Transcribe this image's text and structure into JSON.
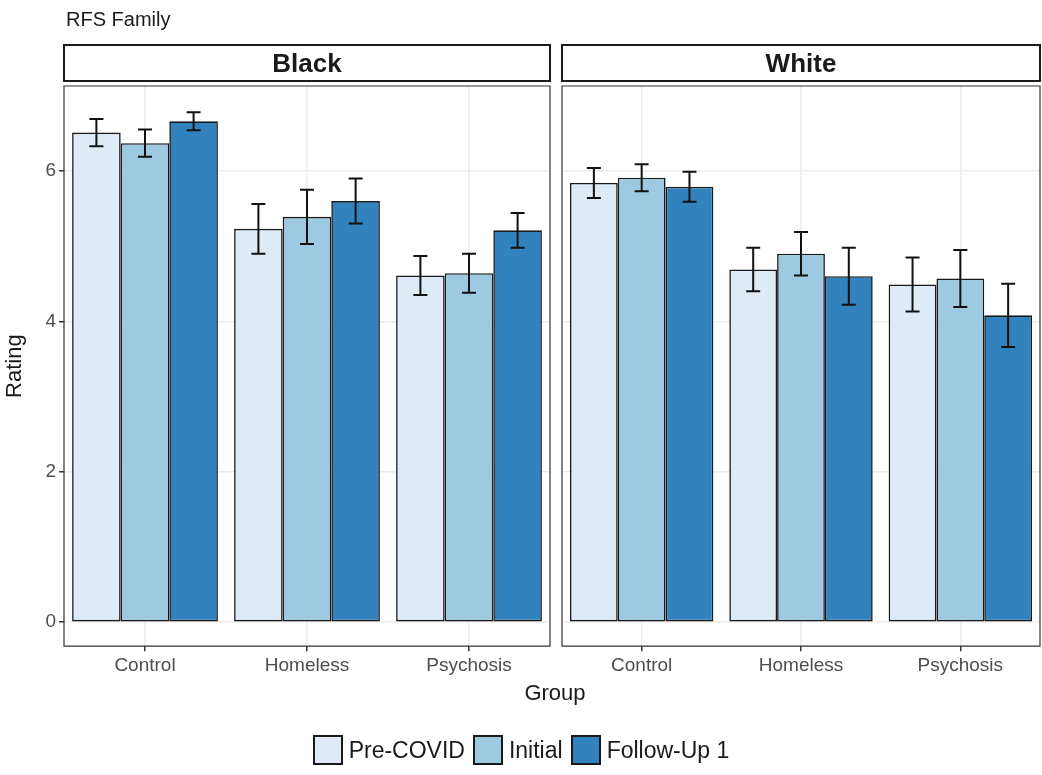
{
  "chart_data": [
    {
      "type": "bar",
      "title": "Black",
      "annotations": [
        "RFS Family"
      ],
      "xlabel": "Group",
      "ylabel": "Rating",
      "categories": [
        "Control",
        "Homeless",
        "Psychosis"
      ],
      "ylim": [
        -0.32,
        7.13
      ],
      "yticks": [
        0,
        2,
        4,
        6
      ],
      "grid": true,
      "legend": "bottom",
      "series": [
        {
          "name": "Pre-COVID",
          "color": "#deebf7",
          "values": [
            6.51,
            5.23,
            4.61
          ],
          "errors": [
            0.18,
            0.33,
            0.26
          ]
        },
        {
          "name": "Initial",
          "color": "#9ecae1",
          "values": [
            6.37,
            5.39,
            4.64
          ],
          "errors": [
            0.18,
            0.36,
            0.26
          ]
        },
        {
          "name": "Follow-Up 1",
          "color": "#3182bd",
          "values": [
            6.66,
            5.6,
            5.21
          ],
          "errors": [
            0.12,
            0.3,
            0.23
          ]
        }
      ]
    },
    {
      "type": "bar",
      "title": "White",
      "categories": [
        "Control",
        "Homeless",
        "Psychosis"
      ],
      "ylim": [
        -0.32,
        7.13
      ],
      "yticks": [
        0,
        2,
        4,
        6
      ],
      "grid": true,
      "tick_labels": "x",
      "series": [
        {
          "color": "#deebf7",
          "values": [
            5.84,
            4.69,
            4.49
          ],
          "errors": [
            0.2,
            0.29,
            0.36
          ]
        },
        {
          "color": "#9ecae1",
          "values": [
            5.91,
            4.9,
            4.57
          ],
          "errors": [
            0.18,
            0.29,
            0.38
          ]
        },
        {
          "color": "#3182bd",
          "values": [
            5.79,
            4.6,
            4.08
          ],
          "errors": [
            0.2,
            0.38,
            0.42
          ]
        }
      ]
    }
  ]
}
